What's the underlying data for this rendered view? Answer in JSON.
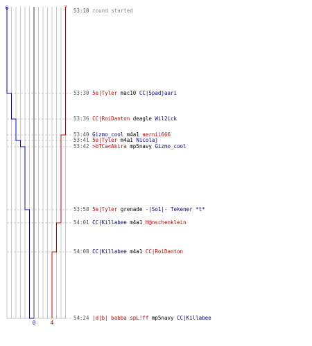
{
  "score": {
    "blue_start": "6",
    "red_start": "7",
    "blue_end": "0",
    "red_end": "4"
  },
  "colors": {
    "blue": "#0000cc",
    "red": "#cc0000",
    "blue_text": "#000080",
    "red_text": "#cc0000",
    "grid": "#bbbbbb",
    "center": "#666666",
    "dash": "#bbbbbb"
  },
  "series": {
    "blue_alive": [
      6,
      5,
      4,
      4,
      3,
      2,
      1,
      1,
      1,
      0
    ],
    "red_alive": [
      7,
      7,
      7,
      6,
      6,
      6,
      6,
      5,
      4,
      4
    ]
  },
  "events": [
    {
      "time": "53:10",
      "text": "round started"
    },
    {
      "time": "53:30",
      "attacker": "5e|Tyler",
      "attacker_team": "red",
      "weapon": "mac10",
      "victim": "CC|Spadjaari",
      "victim_team": "blue"
    },
    {
      "time": "53:36",
      "attacker": "CC|RoiDanton",
      "attacker_team": "red",
      "weapon": "deagle",
      "victim": "Wil2ick",
      "victim_team": "blue"
    },
    {
      "time": "53:40",
      "attacker": "Gizmo_cool",
      "attacker_team": "blue",
      "weapon": "m4a1",
      "victim": "aernii666",
      "victim_team": "red"
    },
    {
      "time": "53:41",
      "attacker": "5e|Tyler",
      "attacker_team": "red",
      "weapon": "m4a1",
      "victim": "Nicolaj",
      "victim_team": "blue"
    },
    {
      "time": "53:42",
      "attacker": ">bTCa<Akira",
      "attacker_team": "red",
      "weapon": "mp5navy",
      "victim": "Gizmo_cool",
      "victim_team": "blue"
    },
    {
      "time": "53:58",
      "attacker": "5e|Tyler",
      "attacker_team": "red",
      "weapon": "grenade",
      "victim": "-|So1|- Tekener *t*",
      "victim_team": "blue"
    },
    {
      "time": "54:01",
      "attacker": "CC|Killabee",
      "attacker_team": "blue",
      "weapon": "m4a1",
      "victim": "H@nschenklein",
      "victim_team": "red"
    },
    {
      "time": "54:08",
      "attacker": "CC|Killabee",
      "attacker_team": "blue",
      "weapon": "m4a1",
      "victim": "CC|RoiDanton",
      "victim_team": "red"
    },
    {
      "time": "54:24",
      "attacker": "|d|b| babba spL!ff",
      "attacker_team": "red",
      "weapon": "mp5navy",
      "victim": "CC|Killabee",
      "victim_team": "blue"
    }
  ]
}
